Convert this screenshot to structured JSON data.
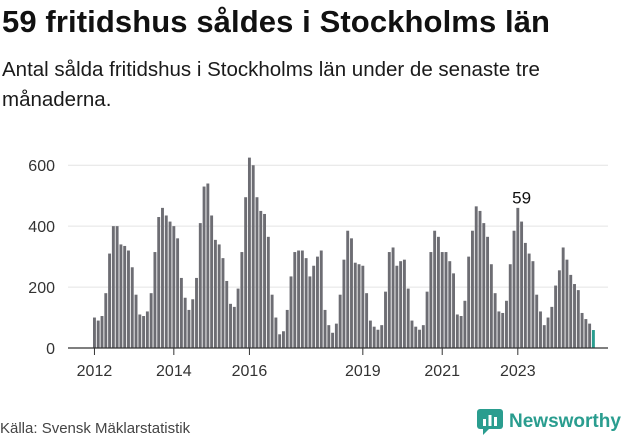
{
  "title": "59 fritidshus såldes i Stockholms län",
  "subtitle": "Antal sålda fritidshus i Stockholms län under de senaste tre månaderna.",
  "source": "Källa: Svensk Mäklarstatistik",
  "brand": {
    "name": "Newsworthy",
    "icon": "newsworthy-logo-icon"
  },
  "colors": {
    "bar": "#6d6d73",
    "highlight": "#2a9d8f",
    "grid": "#e4e4e4",
    "axis": "#333333"
  },
  "chart_data": {
    "type": "bar",
    "title": "59 fritidshus såldes i Stockholms län",
    "xlabel": "",
    "ylabel": "",
    "ylim": [
      0,
      650
    ],
    "yticks": [
      0,
      200,
      400,
      600
    ],
    "xtick_labels": [
      "2012",
      "2014",
      "2016",
      "2019",
      "2021",
      "2023"
    ],
    "xtick_index": [
      0,
      21,
      41,
      71,
      92,
      112
    ],
    "grid": true,
    "legend": "none",
    "annotation": {
      "text": "59",
      "index": 113
    },
    "values": [
      100,
      90,
      105,
      180,
      310,
      400,
      400,
      340,
      335,
      320,
      265,
      175,
      110,
      105,
      120,
      180,
      315,
      430,
      460,
      435,
      415,
      400,
      360,
      230,
      165,
      125,
      160,
      230,
      410,
      530,
      540,
      435,
      355,
      340,
      295,
      220,
      145,
      135,
      195,
      315,
      495,
      625,
      600,
      495,
      450,
      440,
      365,
      175,
      100,
      45,
      55,
      125,
      235,
      315,
      320,
      320,
      295,
      235,
      270,
      300,
      320,
      125,
      75,
      50,
      80,
      175,
      290,
      385,
      360,
      280,
      275,
      270,
      180,
      90,
      70,
      60,
      75,
      185,
      315,
      330,
      270,
      285,
      290,
      195,
      90,
      70,
      60,
      75,
      185,
      315,
      385,
      365,
      315,
      315,
      285,
      245,
      110,
      105,
      155,
      300,
      385,
      465,
      450,
      410,
      365,
      275,
      180,
      120,
      115,
      155,
      275,
      385,
      460,
      415,
      345,
      310,
      285,
      175,
      120,
      75,
      100,
      135,
      205,
      255,
      330,
      290,
      240,
      210,
      190,
      115,
      95,
      80,
      59
    ]
  }
}
